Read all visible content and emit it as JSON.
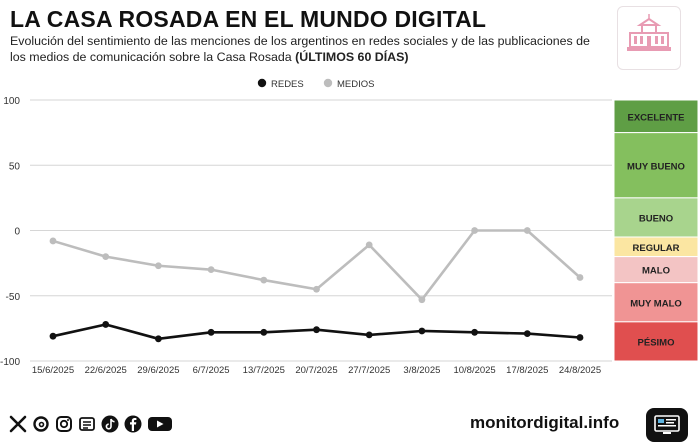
{
  "header": {
    "title": "LA CASA ROSADA EN EL MUNDO DIGITAL",
    "subtitle_main": "Evolución del sentimiento de las menciones de los argentinos en redes sociales y de las publicaciones de los medios de comunicación sobre la Casa Rosada",
    "subtitle_bold": "(ÚLTIMOS 60 DÍAS)"
  },
  "chart_data": {
    "type": "line",
    "title": "LA CASA ROSADA EN EL MUNDO DIGITAL",
    "categories": [
      "15/6/2025",
      "22/6/2025",
      "29/6/2025",
      "6/7/2025",
      "13/7/2025",
      "20/7/2025",
      "27/7/2025",
      "3/8/2025",
      "10/8/2025",
      "17/8/2025",
      "24/8/2025"
    ],
    "series": [
      {
        "name": "REDES",
        "color": "#111111",
        "values": [
          -81,
          -72,
          -83,
          -78,
          -78,
          -76,
          -80,
          -77,
          -78,
          -79,
          -82
        ]
      },
      {
        "name": "MEDIOS",
        "color": "#bdbdbd",
        "values": [
          -8,
          -20,
          -27,
          -30,
          -38,
          -45,
          -11,
          -53,
          0,
          0,
          -36
        ]
      }
    ],
    "y_ticks": [
      100,
      50,
      0,
      -50,
      -100
    ],
    "ylim": [
      -100,
      100
    ],
    "legend_position": "top-center",
    "scale_bands": [
      {
        "label": "EXCELENTE",
        "color": "#5f9e45",
        "range": [
          75,
          100
        ]
      },
      {
        "label": "MUY BUENO",
        "color": "#84bf5e",
        "range": [
          25,
          75
        ]
      },
      {
        "label": "BUENO",
        "color": "#a8d48d",
        "range": [
          -5,
          25
        ]
      },
      {
        "label": "REGULAR",
        "color": "#fbe6a2",
        "range": [
          -20,
          -5
        ]
      },
      {
        "label": "MALO",
        "color": "#f3c4c4",
        "range": [
          -40,
          -20
        ]
      },
      {
        "label": "MUY MALO",
        "color": "#f09494",
        "range": [
          -70,
          -40
        ]
      },
      {
        "label": "PÉSIMO",
        "color": "#e04f4f",
        "range": [
          -100,
          -70
        ]
      }
    ]
  },
  "footer": {
    "brand": "monitordigital.info",
    "social_icons": [
      "x-icon",
      "threads-icon",
      "instagram-icon",
      "news-icon",
      "tiktok-icon",
      "facebook-icon",
      "youtube-icon"
    ]
  }
}
